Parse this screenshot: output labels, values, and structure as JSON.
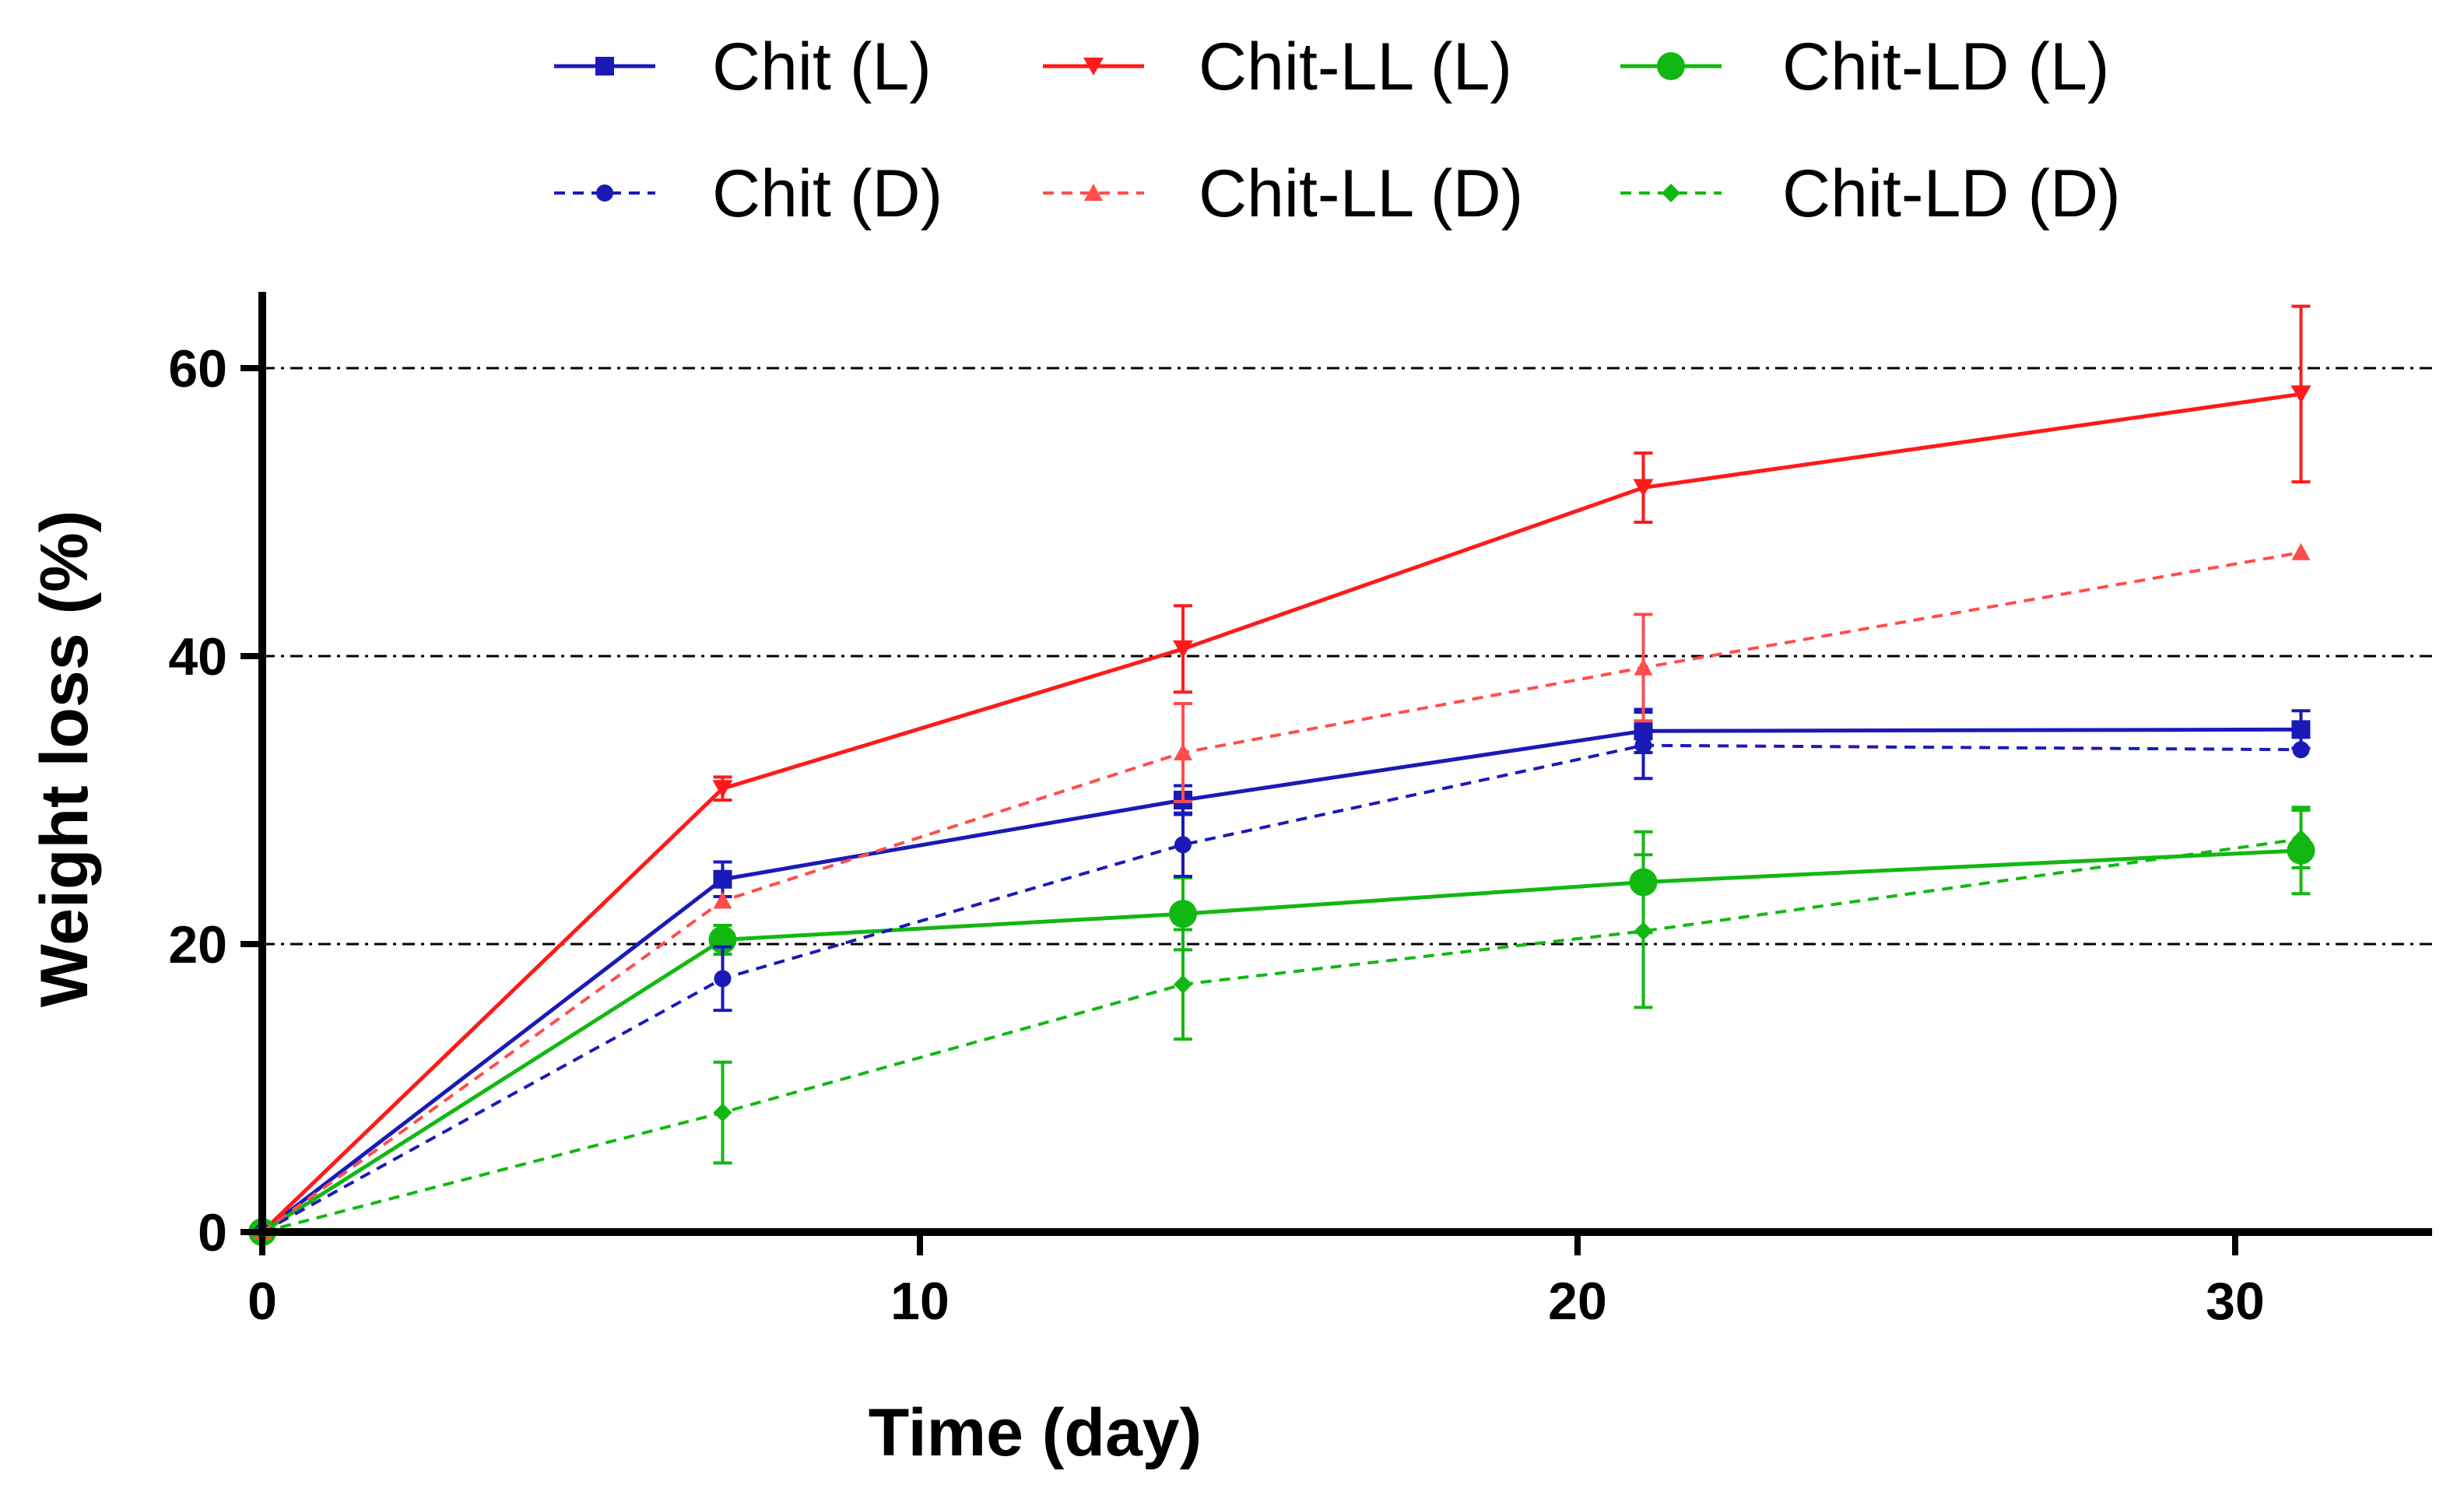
{
  "chart_data": {
    "type": "line",
    "title": "",
    "xlabel": "Time (day)",
    "ylabel": "Weight loss (%)",
    "xlim": [
      0,
      33
    ],
    "ylim": [
      0,
      65
    ],
    "xticks": [
      0,
      10,
      20,
      30
    ],
    "yticks": [
      0,
      20,
      40,
      60
    ],
    "grid": "horizontal dash-dot at 20, 40, 60",
    "legend_position": "top",
    "x": [
      0,
      7,
      14,
      21,
      31
    ],
    "series": [
      {
        "name": "Chit (L)",
        "color": "#1a1ab8",
        "dashed": false,
        "marker": "square",
        "values": [
          0,
          24.5,
          30.0,
          34.8,
          34.9
        ],
        "errors": [
          0,
          1.2,
          1.0,
          1.5,
          1.3
        ]
      },
      {
        "name": "Chit-LL (L)",
        "color": "#ff1a1a",
        "dashed": false,
        "marker": "triangle-down",
        "values": [
          0,
          30.8,
          40.5,
          51.7,
          58.2
        ],
        "errors": [
          0,
          0.8,
          3.0,
          2.4,
          6.1
        ]
      },
      {
        "name": "Chit-LD (L)",
        "color": "#12b812",
        "dashed": false,
        "marker": "circle",
        "values": [
          0,
          20.3,
          22.1,
          24.3,
          26.5
        ],
        "errors": [
          0,
          1.0,
          2.5,
          3.5,
          3.0
        ]
      },
      {
        "name": "Chit (D)",
        "color": "#1a1ab8",
        "dashed": true,
        "marker": "dot",
        "values": [
          0,
          17.6,
          26.9,
          33.8,
          33.5
        ],
        "errors": [
          0,
          2.2,
          2.2,
          2.3,
          0
        ]
      },
      {
        "name": "Chit-LL (D)",
        "color": "#ff4d4d",
        "dashed": true,
        "marker": "triangle-up",
        "values": [
          0,
          23.0,
          33.3,
          39.2,
          47.2
        ],
        "errors": [
          0,
          0,
          3.4,
          3.7,
          0
        ]
      },
      {
        "name": "Chit-LD (D)",
        "color": "#12b812",
        "dashed": true,
        "marker": "diamond",
        "values": [
          0,
          8.3,
          17.2,
          20.9,
          27.3
        ],
        "errors": [
          0,
          3.5,
          3.8,
          5.3,
          2.0
        ]
      }
    ]
  }
}
